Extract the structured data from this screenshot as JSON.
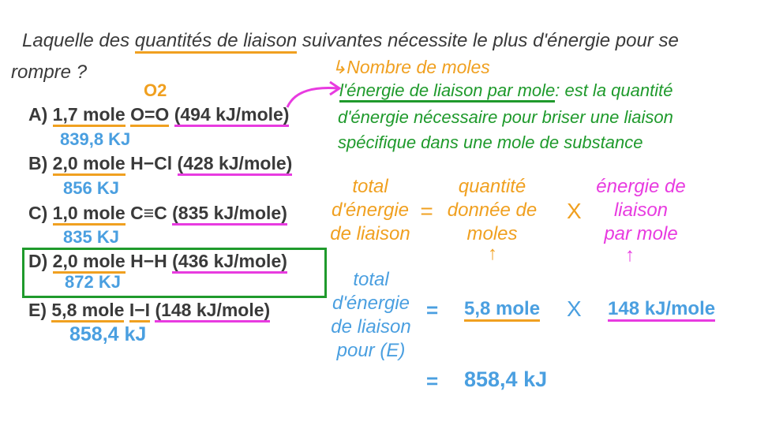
{
  "question": {
    "line1_pre": "Laquelle des ",
    "line1_underlined": "quantités de liaison",
    "line1_post": " suivantes nécessite le plus d'énergie pour se",
    "line2": "rompre ?"
  },
  "annotations": {
    "moles_note": "↳Nombre de moles",
    "o2_label": "O2",
    "definition_term": "l'énergie de liaison par mole",
    "definition_line1": ": est la quantité",
    "definition_line2": "d'énergie nécessaire pour briser une liaison",
    "definition_line3": "spécifique dans une mole de substance"
  },
  "options": [
    {
      "letter": "A)",
      "moles": "1,7 mole",
      "bond": "O=O",
      "energy": "(494 kJ/mole)",
      "result": "839,8 KJ"
    },
    {
      "letter": "B)",
      "moles": "2,0 mole",
      "bond": "H−Cl",
      "energy": "(428 kJ/mole)",
      "result": "856 KJ"
    },
    {
      "letter": "C)",
      "moles": "1,0 mole",
      "bond": "C≡C",
      "energy": "(835 kJ/mole)",
      "result": "835 KJ"
    },
    {
      "letter": "D)",
      "moles": "2,0 mole",
      "bond": "H−H",
      "energy": "(436 kJ/mole)",
      "result": "872 KJ"
    },
    {
      "letter": "E)",
      "moles": "5,8 mole",
      "bond": "I−I",
      "energy": "(148 kJ/mole)",
      "result": "858,4 kJ"
    }
  ],
  "formula": {
    "lhs": [
      "total",
      "d'énergie",
      "de liaison"
    ],
    "equals": "=",
    "moles": [
      "quantité",
      "donnée de",
      "moles"
    ],
    "times": "X",
    "energy": [
      "énergie de",
      "liaison",
      "par mole"
    ],
    "arrow": "↑"
  },
  "calculation": {
    "lhs": [
      "total",
      "d'énergie",
      "de liaison",
      "pour (E)"
    ],
    "equals": "=",
    "moles": "5,8 mole",
    "times": "X",
    "energy": "148 kJ/mole",
    "result": "858,4 kJ"
  },
  "colors": {
    "text": "#3a3a3a",
    "orange": "#f0a020",
    "magenta": "#e83be0",
    "green": "#1f9a2c",
    "blue": "#4a9fe0"
  }
}
